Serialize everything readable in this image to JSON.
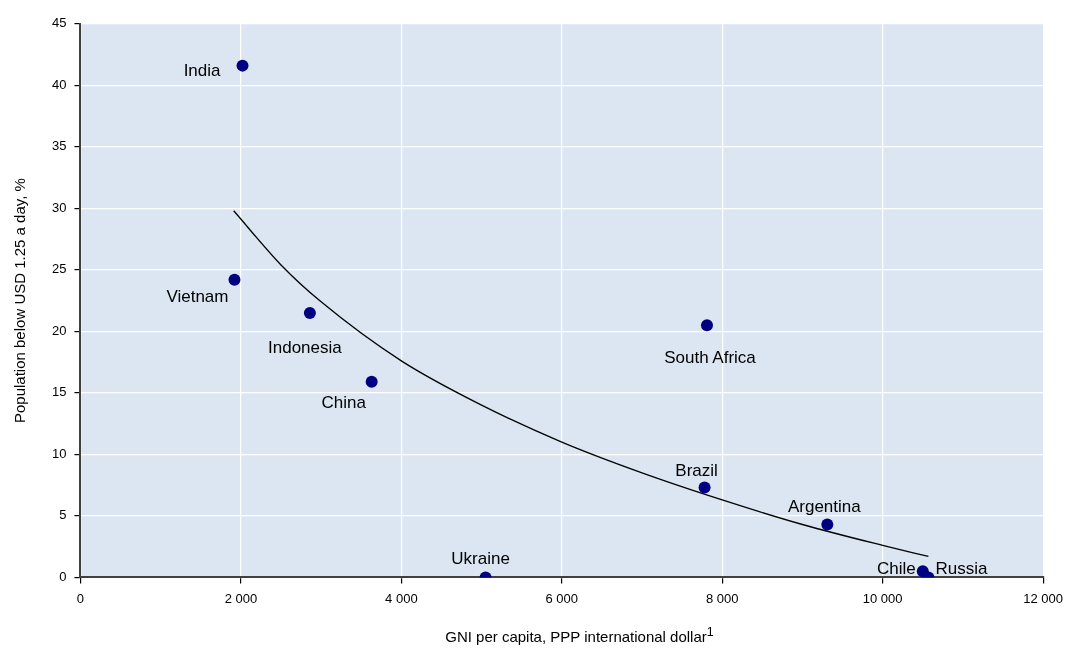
{
  "chart_data": {
    "type": "scatter",
    "xlabel": "GNI per capita, PPP international dollar$^{1}$",
    "ylabel": "Population below USD 1.25 a day, %",
    "xlim": [
      0,
      12000
    ],
    "xticks": [
      0,
      {
        "value": 2000,
        "label": "2 000"
      },
      {
        "value": 4000,
        "label": "4 000"
      },
      {
        "value": 6000,
        "label": "6 000"
      },
      {
        "value": 8000,
        "label": "8 000"
      },
      {
        "value": 10000,
        "label": "10 000"
      },
      {
        "value": 12000,
        "label": "12 000"
      }
    ],
    "ylim": [
      0,
      45
    ],
    "yticks": [
      0,
      5,
      10,
      15,
      20,
      25,
      30,
      35,
      40,
      45
    ],
    "grid": true,
    "legend": false,
    "series": [
      {
        "type": "scatter",
        "color": "#000080",
        "marker": "circle",
        "x": [
          2020,
          1920,
          2860,
          3630,
          7810,
          7780,
          9310,
          10500,
          10570,
          5050
        ],
        "values": [
          41.6,
          24.2,
          21.5,
          15.9,
          20.5,
          7.3,
          4.3,
          0.5,
          0,
          0
        ],
        "value_labels": [
          "India",
          "Vietnam",
          "Indonesia",
          "China",
          "South Africa",
          "Brazil",
          "Argentina",
          "Chile",
          "Russia",
          "Ukraine"
        ]
      },
      {
        "type": "line",
        "color": "#000000",
        "marker": "none",
        "line_style": "solid",
        "x": [
          1910,
          2500,
          3000,
          4000,
          5000,
          6000,
          7000,
          8000,
          9000,
          10000,
          10570
        ],
        "values": [
          29.8,
          25.4,
          22.4,
          17.6,
          14.0,
          11.0,
          8.5,
          6.3,
          4.3,
          2.6,
          1.7
        ]
      }
    ]
  }
}
